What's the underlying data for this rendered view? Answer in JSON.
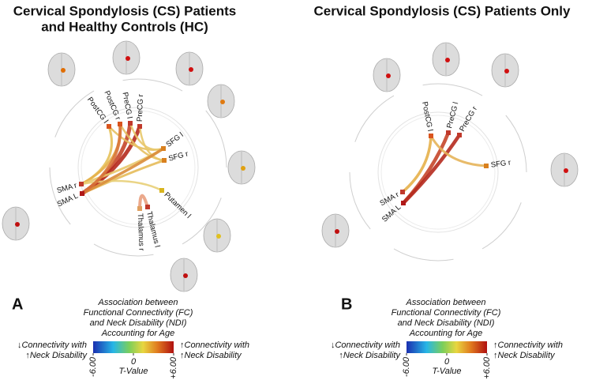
{
  "panels": [
    {
      "letter": "A",
      "title": [
        "Cervical Spondylosis (CS) Patients",
        "and Healthy Controls (HC)"
      ],
      "nodes": [
        "PostCG l",
        "PostCG r",
        "PreCG l",
        "PreCG r",
        "SFG l",
        "SFG r",
        "Putamen l",
        "Thalamus l",
        "Thalamus r",
        "SMA r",
        "SMA L"
      ],
      "legend": {
        "heading": [
          "Association between",
          "Functional Connectivity (FC)",
          "and Neck Disability (NDI)",
          "Accounting for Age"
        ],
        "left": [
          "↓Connectivity with",
          "↑Neck Disability"
        ],
        "right": [
          "↑Connectivity with",
          "↑Neck Disability"
        ],
        "ticks": [
          {
            "value": -6,
            "label": "-6.00"
          },
          0,
          {
            "value": 6,
            "label": "+6.00"
          }
        ],
        "axis_label": "T-Value"
      }
    },
    {
      "letter": "B",
      "title": [
        "Cervical Spondylosis (CS) Patients Only"
      ],
      "nodes": [
        "PostCG l",
        "PreCG l",
        "PreCG r",
        "SFG r",
        "SMA r",
        "SMA L"
      ],
      "legend": {
        "heading": [
          "Association between",
          "Functional Connectivity (FC)",
          "and Neck Disability (NDI)",
          "Accounting for Age"
        ],
        "left": [
          "↓Connectivity with",
          "↑Neck Disability"
        ],
        "right": [
          "↑Connectivity with",
          "↑Neck Disability"
        ],
        "ticks": [
          {
            "value": -6,
            "label": "-6.00"
          },
          0,
          {
            "value": 6,
            "label": "+6.00"
          }
        ],
        "axis_label": "T-Value"
      }
    }
  ]
}
